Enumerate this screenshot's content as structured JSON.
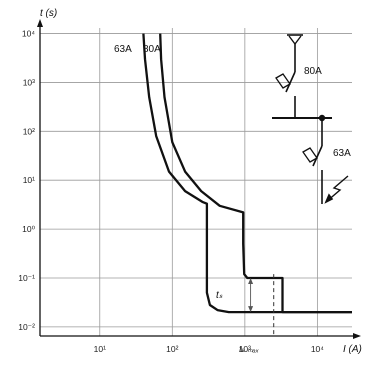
{
  "chart_data": {
    "type": "line",
    "title": "",
    "xlabel": "I (A)",
    "ylabel": "t (s)",
    "x_scale": "log",
    "y_scale": "log",
    "xlim": [
      1.5,
      30000
    ],
    "ylim": [
      0.0065,
      13000
    ],
    "grid": true,
    "x_ticks": [
      {
        "value": 10,
        "label": "10¹"
      },
      {
        "value": 100,
        "label": "10²"
      },
      {
        "value": 1000,
        "label": "10³"
      },
      {
        "value": 10000,
        "label": "10⁴"
      }
    ],
    "y_ticks": [
      {
        "value": 10000,
        "label": "10⁴"
      },
      {
        "value": 1000,
        "label": "10³"
      },
      {
        "value": 100,
        "label": "10²"
      },
      {
        "value": 10,
        "label": "10¹"
      },
      {
        "value": 1,
        "label": "10⁰"
      },
      {
        "value": 0.1,
        "label": "10⁻¹"
      },
      {
        "value": 0.01,
        "label": "10⁻²"
      }
    ],
    "series": [
      {
        "name": "63A",
        "color": "#111111",
        "points": [
          [
            40,
            10000
          ],
          [
            42,
            3000
          ],
          [
            48,
            500
          ],
          [
            60,
            80
          ],
          [
            90,
            15
          ],
          [
            150,
            6
          ],
          [
            260,
            3.6
          ],
          [
            300,
            3.3
          ],
          [
            300,
            0.5
          ],
          [
            300,
            0.05
          ],
          [
            330,
            0.028
          ],
          [
            420,
            0.022
          ],
          [
            600,
            0.02
          ],
          [
            1000,
            0.02
          ],
          [
            30000,
            0.02
          ]
        ]
      },
      {
        "name": "80A",
        "color": "#111111",
        "points": [
          [
            68,
            10000
          ],
          [
            70,
            3000
          ],
          [
            78,
            500
          ],
          [
            100,
            60
          ],
          [
            150,
            15
          ],
          [
            250,
            6
          ],
          [
            450,
            3
          ],
          [
            950,
            2.2
          ],
          [
            950,
            0.5
          ],
          [
            980,
            0.12
          ],
          [
            1080,
            0.1
          ],
          [
            3300,
            0.1
          ],
          [
            3300,
            0.02
          ],
          [
            30000,
            0.02
          ]
        ]
      }
    ],
    "annotations": [
      {
        "text": "63A",
        "x": 50,
        "y": 10000
      },
      {
        "text": "80A",
        "x": 90,
        "y": 10000
      },
      {
        "text": "tₛ",
        "x": 850,
        "y": 0.045
      },
      {
        "text": "Iₖ ₘₐₓ",
        "x": 2500,
        "y": 0.0065
      },
      {
        "text": "80A",
        "x": 0,
        "y": 0
      },
      {
        "text": "63A",
        "x": 0,
        "y": 0
      }
    ],
    "markers": {
      "ts_x": 1200,
      "ts_y_top": 0.1,
      "ts_y_bottom": 0.02,
      "ikmax_x": 2500
    }
  }
}
